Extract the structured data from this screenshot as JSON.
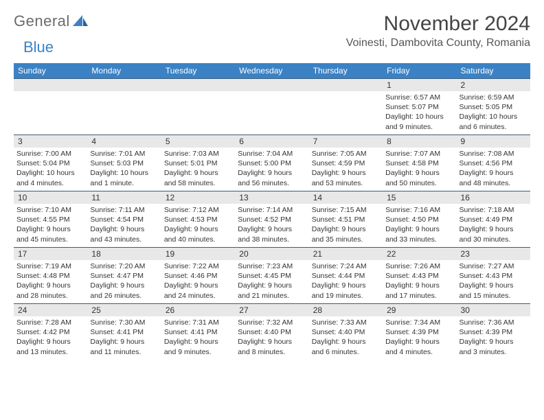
{
  "logo": {
    "text1": "General",
    "text2": "Blue"
  },
  "title": "November 2024",
  "location": "Voinesti, Dambovita County, Romania",
  "colors": {
    "header_bg": "#3b82c4",
    "header_text": "#ffffff",
    "daynum_bg": "#e8e8e8",
    "border": "#3b5a7a",
    "body_text": "#333333",
    "title_text": "#444444"
  },
  "weekdays": [
    "Sunday",
    "Monday",
    "Tuesday",
    "Wednesday",
    "Thursday",
    "Friday",
    "Saturday"
  ],
  "weeks": [
    [
      {
        "day": "",
        "lines": [
          "",
          "",
          "",
          ""
        ]
      },
      {
        "day": "",
        "lines": [
          "",
          "",
          "",
          ""
        ]
      },
      {
        "day": "",
        "lines": [
          "",
          "",
          "",
          ""
        ]
      },
      {
        "day": "",
        "lines": [
          "",
          "",
          "",
          ""
        ]
      },
      {
        "day": "",
        "lines": [
          "",
          "",
          "",
          ""
        ]
      },
      {
        "day": "1",
        "lines": [
          "Sunrise: 6:57 AM",
          "Sunset: 5:07 PM",
          "Daylight: 10 hours",
          "and 9 minutes."
        ]
      },
      {
        "day": "2",
        "lines": [
          "Sunrise: 6:59 AM",
          "Sunset: 5:05 PM",
          "Daylight: 10 hours",
          "and 6 minutes."
        ]
      }
    ],
    [
      {
        "day": "3",
        "lines": [
          "Sunrise: 7:00 AM",
          "Sunset: 5:04 PM",
          "Daylight: 10 hours",
          "and 4 minutes."
        ]
      },
      {
        "day": "4",
        "lines": [
          "Sunrise: 7:01 AM",
          "Sunset: 5:03 PM",
          "Daylight: 10 hours",
          "and 1 minute."
        ]
      },
      {
        "day": "5",
        "lines": [
          "Sunrise: 7:03 AM",
          "Sunset: 5:01 PM",
          "Daylight: 9 hours",
          "and 58 minutes."
        ]
      },
      {
        "day": "6",
        "lines": [
          "Sunrise: 7:04 AM",
          "Sunset: 5:00 PM",
          "Daylight: 9 hours",
          "and 56 minutes."
        ]
      },
      {
        "day": "7",
        "lines": [
          "Sunrise: 7:05 AM",
          "Sunset: 4:59 PM",
          "Daylight: 9 hours",
          "and 53 minutes."
        ]
      },
      {
        "day": "8",
        "lines": [
          "Sunrise: 7:07 AM",
          "Sunset: 4:58 PM",
          "Daylight: 9 hours",
          "and 50 minutes."
        ]
      },
      {
        "day": "9",
        "lines": [
          "Sunrise: 7:08 AM",
          "Sunset: 4:56 PM",
          "Daylight: 9 hours",
          "and 48 minutes."
        ]
      }
    ],
    [
      {
        "day": "10",
        "lines": [
          "Sunrise: 7:10 AM",
          "Sunset: 4:55 PM",
          "Daylight: 9 hours",
          "and 45 minutes."
        ]
      },
      {
        "day": "11",
        "lines": [
          "Sunrise: 7:11 AM",
          "Sunset: 4:54 PM",
          "Daylight: 9 hours",
          "and 43 minutes."
        ]
      },
      {
        "day": "12",
        "lines": [
          "Sunrise: 7:12 AM",
          "Sunset: 4:53 PM",
          "Daylight: 9 hours",
          "and 40 minutes."
        ]
      },
      {
        "day": "13",
        "lines": [
          "Sunrise: 7:14 AM",
          "Sunset: 4:52 PM",
          "Daylight: 9 hours",
          "and 38 minutes."
        ]
      },
      {
        "day": "14",
        "lines": [
          "Sunrise: 7:15 AM",
          "Sunset: 4:51 PM",
          "Daylight: 9 hours",
          "and 35 minutes."
        ]
      },
      {
        "day": "15",
        "lines": [
          "Sunrise: 7:16 AM",
          "Sunset: 4:50 PM",
          "Daylight: 9 hours",
          "and 33 minutes."
        ]
      },
      {
        "day": "16",
        "lines": [
          "Sunrise: 7:18 AM",
          "Sunset: 4:49 PM",
          "Daylight: 9 hours",
          "and 30 minutes."
        ]
      }
    ],
    [
      {
        "day": "17",
        "lines": [
          "Sunrise: 7:19 AM",
          "Sunset: 4:48 PM",
          "Daylight: 9 hours",
          "and 28 minutes."
        ]
      },
      {
        "day": "18",
        "lines": [
          "Sunrise: 7:20 AM",
          "Sunset: 4:47 PM",
          "Daylight: 9 hours",
          "and 26 minutes."
        ]
      },
      {
        "day": "19",
        "lines": [
          "Sunrise: 7:22 AM",
          "Sunset: 4:46 PM",
          "Daylight: 9 hours",
          "and 24 minutes."
        ]
      },
      {
        "day": "20",
        "lines": [
          "Sunrise: 7:23 AM",
          "Sunset: 4:45 PM",
          "Daylight: 9 hours",
          "and 21 minutes."
        ]
      },
      {
        "day": "21",
        "lines": [
          "Sunrise: 7:24 AM",
          "Sunset: 4:44 PM",
          "Daylight: 9 hours",
          "and 19 minutes."
        ]
      },
      {
        "day": "22",
        "lines": [
          "Sunrise: 7:26 AM",
          "Sunset: 4:43 PM",
          "Daylight: 9 hours",
          "and 17 minutes."
        ]
      },
      {
        "day": "23",
        "lines": [
          "Sunrise: 7:27 AM",
          "Sunset: 4:43 PM",
          "Daylight: 9 hours",
          "and 15 minutes."
        ]
      }
    ],
    [
      {
        "day": "24",
        "lines": [
          "Sunrise: 7:28 AM",
          "Sunset: 4:42 PM",
          "Daylight: 9 hours",
          "and 13 minutes."
        ]
      },
      {
        "day": "25",
        "lines": [
          "Sunrise: 7:30 AM",
          "Sunset: 4:41 PM",
          "Daylight: 9 hours",
          "and 11 minutes."
        ]
      },
      {
        "day": "26",
        "lines": [
          "Sunrise: 7:31 AM",
          "Sunset: 4:41 PM",
          "Daylight: 9 hours",
          "and 9 minutes."
        ]
      },
      {
        "day": "27",
        "lines": [
          "Sunrise: 7:32 AM",
          "Sunset: 4:40 PM",
          "Daylight: 9 hours",
          "and 8 minutes."
        ]
      },
      {
        "day": "28",
        "lines": [
          "Sunrise: 7:33 AM",
          "Sunset: 4:40 PM",
          "Daylight: 9 hours",
          "and 6 minutes."
        ]
      },
      {
        "day": "29",
        "lines": [
          "Sunrise: 7:34 AM",
          "Sunset: 4:39 PM",
          "Daylight: 9 hours",
          "and 4 minutes."
        ]
      },
      {
        "day": "30",
        "lines": [
          "Sunrise: 7:36 AM",
          "Sunset: 4:39 PM",
          "Daylight: 9 hours",
          "and 3 minutes."
        ]
      }
    ]
  ]
}
